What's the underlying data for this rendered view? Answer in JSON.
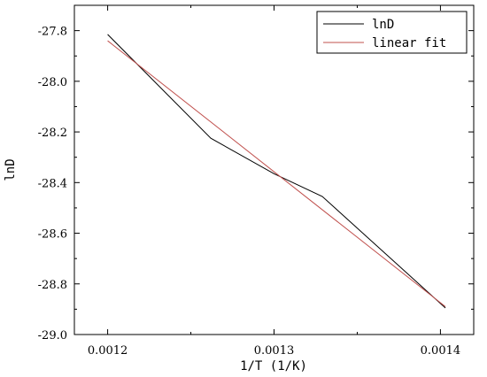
{
  "chart_data": {
    "type": "line",
    "xlabel": "1/T (1/K)",
    "ylabel": "lnD",
    "xlim": [
      0.00118,
      0.00142
    ],
    "ylim": [
      -29.0,
      -27.7
    ],
    "xticks": [
      0.0012,
      0.0013,
      0.0014
    ],
    "xtick_labels": [
      "0.0012",
      "0.0013",
      "0.0014"
    ],
    "yticks": [
      -29.0,
      -28.8,
      -28.6,
      -28.4,
      -28.2,
      -28.0,
      -27.8
    ],
    "ytick_labels": [
      "-29.0",
      "-28.8",
      "-28.6",
      "-28.4",
      "-28.2",
      "-28.0",
      "-27.8"
    ],
    "grid": false,
    "legend_position": "top-right",
    "series": [
      {
        "name": "lnD",
        "color": "#000000",
        "x": [
          0.0012,
          0.001262,
          0.0013,
          0.001329,
          0.001403
        ],
        "y": [
          -27.815,
          -28.225,
          -28.365,
          -28.455,
          -28.895
        ]
      },
      {
        "name": "linear fit",
        "color": "#c0504d",
        "x": [
          0.0012,
          0.001403
        ],
        "y": [
          -27.84,
          -28.89
        ]
      }
    ]
  }
}
